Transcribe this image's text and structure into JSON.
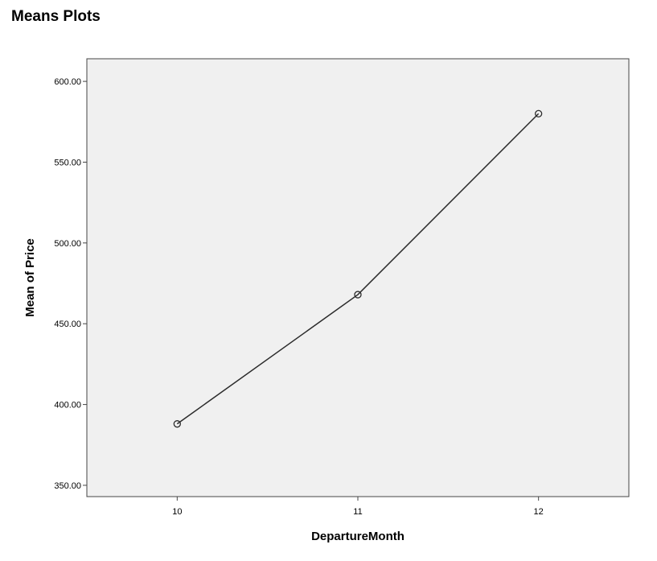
{
  "page": {
    "title": "Means Plots"
  },
  "chart_data": {
    "type": "line",
    "title": "",
    "xlabel": "DepartureMonth",
    "ylabel": "Mean of Price",
    "categories": [
      "10",
      "11",
      "12"
    ],
    "series": [
      {
        "values": [
          388,
          468,
          580
        ]
      }
    ],
    "yticks": [
      "350.00",
      "400.00",
      "450.00",
      "500.00",
      "550.00",
      "600.00"
    ],
    "ylim": [
      343,
      614
    ],
    "grid": false,
    "markers": "hollow-circle",
    "colors": {
      "plot_background": "#f0f0f0",
      "line": "#2b2b2b",
      "frame": "#444444"
    }
  }
}
